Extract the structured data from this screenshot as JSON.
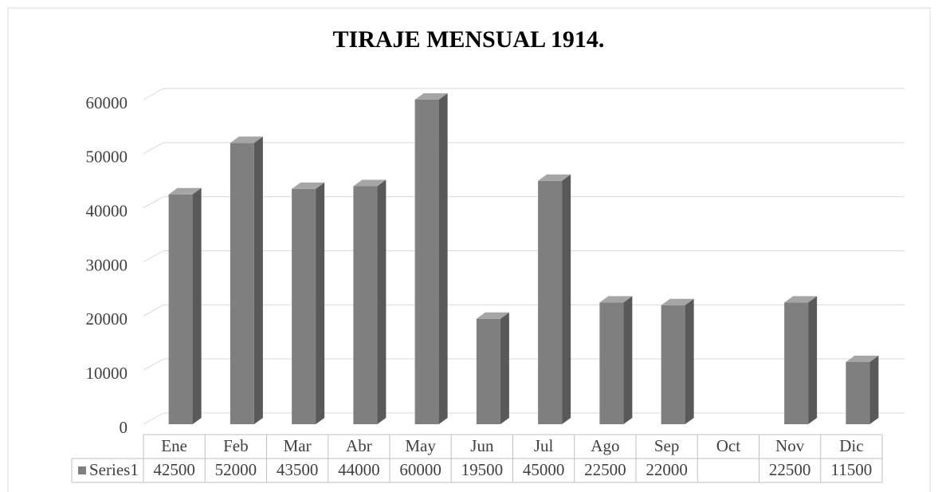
{
  "chart_data": {
    "type": "bar3d",
    "title": "TIRAJE MENSUAL 1914.",
    "categories": [
      "Ene",
      "Feb",
      "Mar",
      "Abr",
      "May",
      "Jun",
      "Jul",
      "Ago",
      "Sep",
      "Oct",
      "Nov",
      "Dic"
    ],
    "series": [
      {
        "name": "Series1",
        "color": "#7f7f7f",
        "values": [
          42500,
          52000,
          43500,
          44000,
          60000,
          19500,
          45000,
          22500,
          22000,
          null,
          22500,
          11500
        ]
      }
    ],
    "ylim": [
      0,
      60000
    ],
    "yticks": [
      0,
      10000,
      20000,
      30000,
      40000,
      50000,
      60000
    ],
    "grid": true,
    "data_table": true
  }
}
